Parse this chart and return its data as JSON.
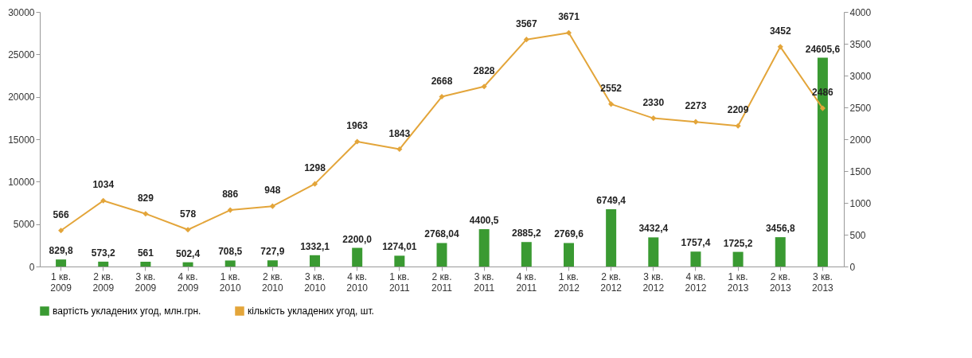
{
  "chart_data": {
    "type": "bar",
    "categories": [
      "1 кв. 2009",
      "2 кв. 2009",
      "3 кв. 2009",
      "4 кв. 2009",
      "1 кв. 2010",
      "2 кв. 2010",
      "3 кв. 2010",
      "4 кв. 2010",
      "1 кв. 2011",
      "2 кв. 2011",
      "3 кв. 2011",
      "4 кв. 2011",
      "1 кв. 2012",
      "2 кв. 2012",
      "3 кв. 2012",
      "4 кв. 2012",
      "1 кв. 2013",
      "2 кв. 2013",
      "3 кв. 2013"
    ],
    "series": [
      {
        "name": "вартість укладених угод, млн.грн.",
        "color": "#3a9a32",
        "values": [
          829.8,
          573.2,
          561,
          502.4,
          708.5,
          727.9,
          1332.1,
          2200.0,
          1274.01,
          2768.04,
          4400.5,
          2885.2,
          2769.6,
          6749.4,
          3432.4,
          1757.4,
          1725.2,
          3456.8,
          24605.6
        ],
        "value_labels": [
          "829,8",
          "573,2",
          "561",
          "502,4",
          "708,5",
          "727,9",
          "1332,1",
          "2200,0",
          "1274,01",
          "2768,04",
          "4400,5",
          "2885,2",
          "2769,6",
          "6749,4",
          "3432,4",
          "1757,4",
          "1725,2",
          "3456,8",
          "24605,6"
        ]
      },
      {
        "name": "кількість укладених угод, шт.",
        "type": "line",
        "axis": "y2",
        "color": "#e3a53a",
        "values": [
          566,
          1034,
          829,
          578,
          886,
          948,
          1298,
          1963,
          1843,
          2668,
          2828,
          3567,
          3671,
          2552,
          2330,
          2273,
          2209,
          3452,
          2486
        ],
        "value_labels": [
          "566",
          "1034",
          "829",
          "578",
          "886",
          "948",
          "1298",
          "1963",
          "1843",
          "2668",
          "2828",
          "3567",
          "3671",
          "2552",
          "2330",
          "2273",
          "2209",
          "3452",
          "2486"
        ]
      }
    ],
    "ylim": [
      0,
      30000
    ],
    "yticks": [
      0,
      5000,
      10000,
      15000,
      20000,
      25000,
      30000
    ],
    "y2lim": [
      0,
      4000
    ],
    "y2ticks": [
      0,
      500,
      1000,
      1500,
      2000,
      2500,
      3000,
      3500,
      4000
    ],
    "legend": "bottom",
    "marker": "diamond"
  }
}
